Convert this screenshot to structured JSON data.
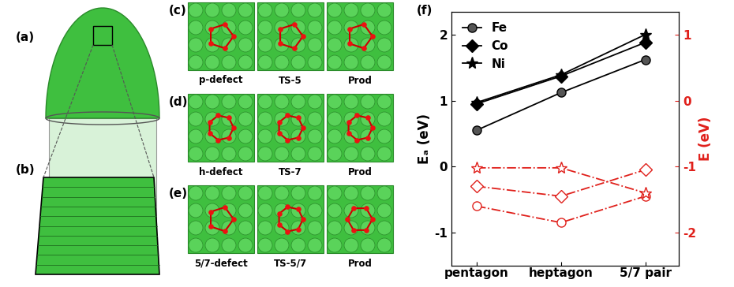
{
  "panels": {
    "a": "(a)",
    "b": "(b)",
    "rows": [
      {
        "label": "(c)",
        "captions": [
          "p-defect",
          "TS-5",
          "Prod"
        ]
      },
      {
        "label": "(d)",
        "captions": [
          "h-defect",
          "TS-7",
          "Prod"
        ]
      },
      {
        "label": "(e)",
        "captions": [
          "5/7-defect",
          "TS-5/7",
          "Prod"
        ]
      }
    ],
    "chart_label": "(f)"
  },
  "chart_data": {
    "type": "line",
    "categories": [
      "pentagon",
      "heptagon",
      "5/7 pair"
    ],
    "ylabel": "Eₐ (eV)",
    "y2label": "E (eV)",
    "ylim": [
      -1.5,
      2.35
    ],
    "yticks": [
      -1,
      0,
      1,
      2
    ],
    "y2lim": [
      -2.5,
      1.35
    ],
    "y2ticks": [
      -2,
      -1,
      0,
      1
    ],
    "legend": "upper left",
    "series": [
      {
        "name": "Fe",
        "color": "#000000",
        "marker": "circle",
        "line_style": "solid",
        "values": [
          0.55,
          1.12,
          1.62
        ]
      },
      {
        "name": "Co",
        "color": "#000000",
        "marker": "diamond",
        "line_style": "solid",
        "values": [
          0.95,
          1.37,
          1.88
        ]
      },
      {
        "name": "Ni",
        "color": "#000000",
        "marker": "star",
        "line_style": "solid",
        "values": [
          0.97,
          1.39,
          2.0
        ]
      },
      {
        "axis": "y2",
        "color": "#e0201b",
        "marker": "circle",
        "line_style": "dashdot",
        "values": [
          -1.6,
          -1.85,
          -1.45
        ]
      },
      {
        "axis": "y2",
        "color": "#e0201b",
        "marker": "diamond",
        "line_style": "dashdot",
        "values": [
          -1.3,
          -1.45,
          -1.05
        ]
      },
      {
        "axis": "y2",
        "color": "#e0201b",
        "marker": "star",
        "line_style": "dashdot",
        "values": [
          -1.02,
          -1.02,
          -1.4
        ]
      }
    ]
  }
}
